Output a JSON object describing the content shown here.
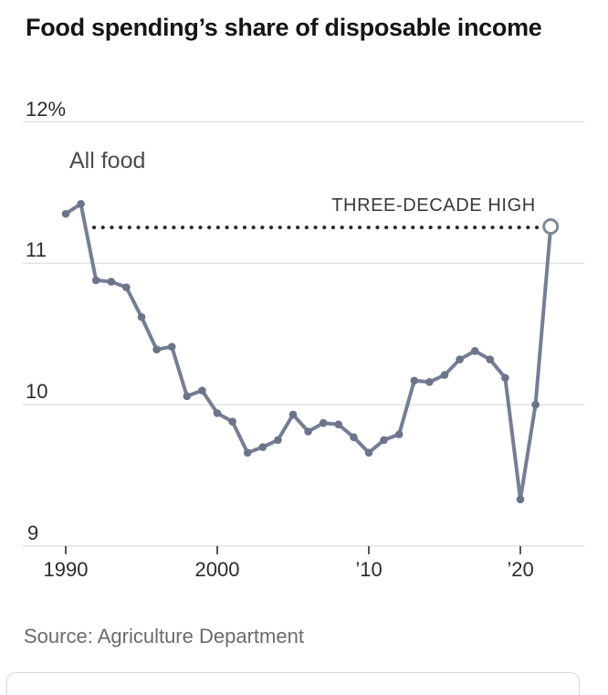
{
  "page": {
    "title": "Food spending’s share of disposable income",
    "source": "Source: Agriculture Department"
  },
  "chart_data": {
    "type": "line",
    "title": "Food spending’s share of disposable income",
    "series_label": "All food",
    "annotation": "THREE-DECADE HIGH",
    "unit": "%",
    "grid": true,
    "legend_position": "inline-label",
    "xlim": [
      1989,
      2023
    ],
    "ylim": [
      9,
      12.2
    ],
    "x": [
      1990,
      1991,
      1992,
      1993,
      1994,
      1995,
      1996,
      1997,
      1998,
      1999,
      2000,
      2001,
      2002,
      2003,
      2004,
      2005,
      2006,
      2007,
      2008,
      2009,
      2010,
      2011,
      2012,
      2013,
      2014,
      2015,
      2016,
      2017,
      2018,
      2019,
      2020,
      2021,
      2022
    ],
    "values": [
      11.35,
      11.42,
      10.88,
      10.87,
      10.83,
      10.62,
      10.39,
      10.41,
      10.06,
      10.1,
      9.94,
      9.88,
      9.66,
      9.7,
      9.75,
      9.93,
      9.81,
      9.87,
      9.86,
      9.77,
      9.66,
      9.75,
      9.79,
      10.17,
      10.16,
      10.21,
      10.32,
      10.38,
      10.32,
      10.19,
      9.33,
      10.0,
      11.26
    ],
    "highlight": {
      "year": 2022,
      "value": 11.26,
      "marker": "open-circle",
      "label": "THREE-DECADE HIGH"
    },
    "y_ticks": [
      {
        "label": "12%",
        "value": 12
      },
      {
        "label": "11",
        "value": 11
      },
      {
        "label": "10",
        "value": 10
      },
      {
        "label": "9",
        "value": 9
      }
    ],
    "x_ticks": [
      {
        "label": "1990",
        "year": 1990
      },
      {
        "label": "2000",
        "year": 2000
      },
      {
        "label": "’10",
        "year": 2010
      },
      {
        "label": "’20",
        "year": 2020
      }
    ],
    "colors": {
      "line": "#757e95",
      "marker": "#6b7489",
      "open_circle_stroke": "#7f8798",
      "dotted_rule": "#2b2b2b",
      "grid": "#e3e3e3",
      "axis_tick": "#555555"
    }
  }
}
